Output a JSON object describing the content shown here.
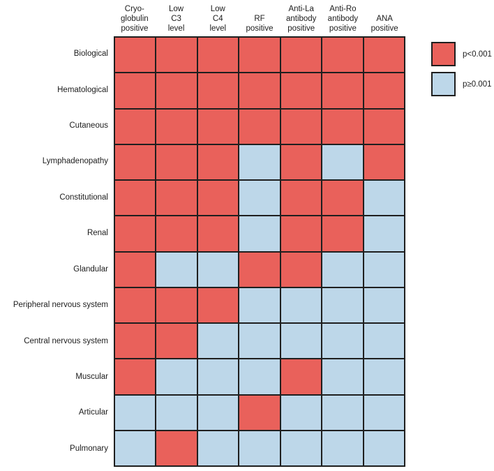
{
  "figure": {
    "background": "#ffffff",
    "grid_line_color": "#1f1f1f"
  },
  "legend": {
    "items": [
      {
        "label": "p<0.001",
        "color": "#e9615b",
        "name": "significant"
      },
      {
        "label": "p≥0.001",
        "color": "#bdd7e9",
        "name": "not-significant"
      }
    ]
  },
  "chart_data": {
    "type": "heatmap",
    "title": "",
    "xlabel": "",
    "ylabel": "",
    "legend_position": "top-right",
    "grid": true,
    "columns": [
      "Cryo-\nglobulin\npositive",
      "Low\nC3\nlevel",
      "Low\nC4\nlevel",
      "RF\npositive",
      "Anti-La\nantibody\npositive",
      "Anti-Ro\nantibody\npositive",
      "ANA\npositive"
    ],
    "rows": [
      "Biological",
      "Hematological",
      "Cutaneous",
      "Lymphadenopathy",
      "Constitutional",
      "Renal",
      "Glandular",
      "Peripheral nervous system",
      "Central nervous system",
      "Muscular",
      "Articular",
      "Pulmonary"
    ],
    "values": [
      [
        1,
        1,
        1,
        1,
        1,
        1,
        1
      ],
      [
        1,
        1,
        1,
        1,
        1,
        1,
        1
      ],
      [
        1,
        1,
        1,
        1,
        1,
        1,
        1
      ],
      [
        1,
        1,
        1,
        0,
        1,
        0,
        1
      ],
      [
        1,
        1,
        1,
        0,
        1,
        1,
        0
      ],
      [
        1,
        1,
        1,
        0,
        1,
        1,
        0
      ],
      [
        1,
        0,
        0,
        1,
        1,
        0,
        0
      ],
      [
        1,
        1,
        1,
        0,
        0,
        0,
        0
      ],
      [
        1,
        1,
        0,
        0,
        0,
        0,
        0
      ],
      [
        1,
        0,
        0,
        0,
        1,
        0,
        0
      ],
      [
        0,
        0,
        0,
        1,
        0,
        0,
        0
      ],
      [
        0,
        1,
        0,
        0,
        0,
        0,
        0
      ]
    ],
    "value_meaning": {
      "1": "p<0.001",
      "0": "p≥0.001"
    },
    "colors": {
      "1": "#e9615b",
      "0": "#bdd7e9"
    }
  }
}
